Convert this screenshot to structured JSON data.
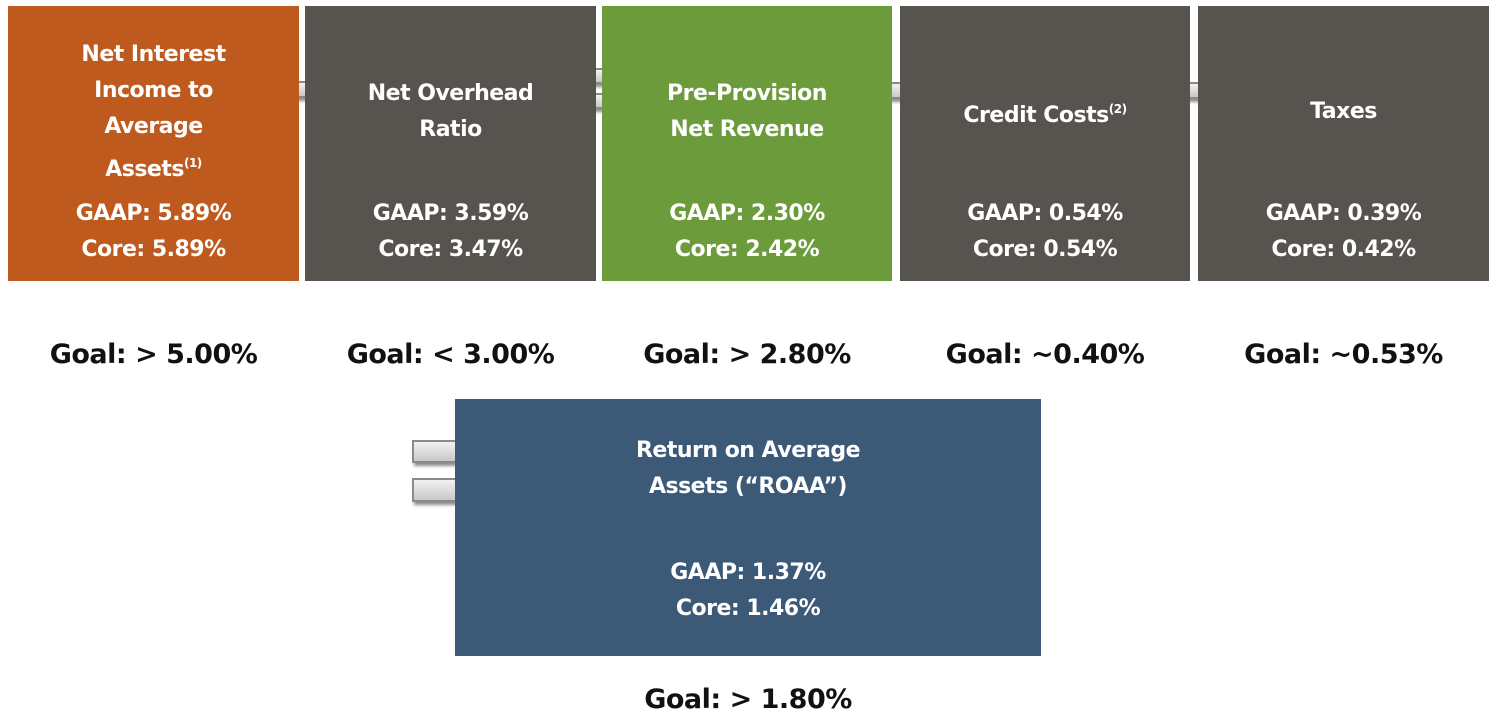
{
  "boxes": [
    {
      "title_lines": [
        "Net Interest",
        "Income to",
        "Average",
        "Assets"
      ],
      "superscript": "(1)",
      "gaap": "GAAP: 5.89%",
      "core": "Core: 5.89%",
      "goal": "Goal: > 5.00%"
    },
    {
      "title_lines": [
        "Net Overhead",
        "Ratio"
      ],
      "gaap": "GAAP: 3.59%",
      "core": "Core: 3.47%",
      "goal": "Goal: < 3.00%"
    },
    {
      "title_lines": [
        "Pre-Provision",
        "Net Revenue"
      ],
      "gaap": "GAAP: 2.30%",
      "core": "Core: 2.42%",
      "goal": "Goal: > 2.80%"
    },
    {
      "title_lines": [
        "Credit Costs"
      ],
      "superscript": "(2)",
      "gaap": "GAAP: 0.54%",
      "core": "Core: 0.54%",
      "goal": "Goal: ~0.40%"
    },
    {
      "title_lines": [
        "Taxes"
      ],
      "gaap": "GAAP: 0.39%",
      "core": "Core: 0.42%",
      "goal": "Goal: ~0.53%"
    }
  ],
  "result": {
    "title_lines": [
      "Return on Average",
      "Assets (“ROAA”)"
    ],
    "gaap": "GAAP: 1.37%",
    "core": "Core: 1.46%",
    "goal": "Goal: > 1.80%"
  }
}
